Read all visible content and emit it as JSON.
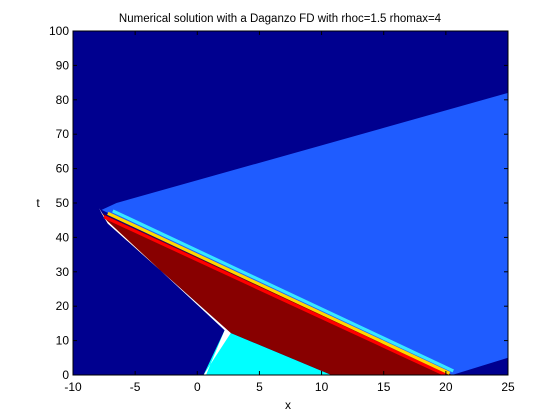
{
  "chart_data": {
    "type": "heatmap",
    "title": "Numerical solution with a Daganzo FD with rhoc=1.5 rhomax=4",
    "xlabel": "x",
    "ylabel": "t",
    "xlim": [
      -10,
      25
    ],
    "ylim": [
      0,
      100
    ],
    "xticks": [
      -10,
      -5,
      0,
      5,
      10,
      15,
      20,
      25
    ],
    "yticks": [
      0,
      10,
      20,
      30,
      40,
      50,
      60,
      70,
      80,
      90,
      100
    ],
    "colormap": "jet",
    "grid": false,
    "regions": [
      {
        "level": "background",
        "color": "#00008f",
        "polygon": [
          [
            -10,
            0
          ],
          [
            25,
            0
          ],
          [
            25,
            100
          ],
          [
            -10,
            100
          ]
        ]
      },
      {
        "level": "upper-fan",
        "color": "#1f5cff",
        "polygon": [
          [
            -7.7,
            48
          ],
          [
            -6.5,
            50
          ],
          [
            25,
            82
          ],
          [
            25,
            5
          ],
          [
            20.5,
            0
          ],
          [
            20,
            0
          ]
        ]
      },
      {
        "level": "light-cyan",
        "color": "#00ffff",
        "polygon": [
          [
            0.5,
            0
          ],
          [
            10.8,
            0
          ],
          [
            2.7,
            12.2
          ],
          [
            2.2,
            13
          ]
        ]
      },
      {
        "level": "dark-red",
        "color": "#880000",
        "polygon": [
          [
            -7.7,
            47
          ],
          [
            -7.2,
            44
          ],
          [
            2.7,
            12.2
          ],
          [
            10.8,
            0
          ],
          [
            20.5,
            0
          ]
        ]
      },
      {
        "level": "white-boundary",
        "color": "#ffffff",
        "polygon": [
          [
            -7.9,
            48.5
          ],
          [
            -7.7,
            47
          ],
          [
            -7.2,
            44
          ],
          [
            2.7,
            12.2
          ],
          [
            0.5,
            0
          ],
          [
            0.7,
            0
          ],
          [
            2.2,
            13
          ],
          [
            -7.3,
            45
          ]
        ]
      }
    ],
    "fronts": [
      {
        "name": "red-band",
        "color": "#ff0000",
        "points": [
          [
            -7.5,
            46
          ],
          [
            20,
            0
          ]
        ]
      },
      {
        "name": "yellow-band",
        "color": "#ffd800",
        "points": [
          [
            -7.2,
            47
          ],
          [
            20.3,
            0.5
          ]
        ]
      },
      {
        "name": "cyan-band",
        "color": "#38e8ff",
        "points": [
          [
            -6.8,
            47.7
          ],
          [
            20.6,
            1.2
          ]
        ]
      }
    ]
  }
}
